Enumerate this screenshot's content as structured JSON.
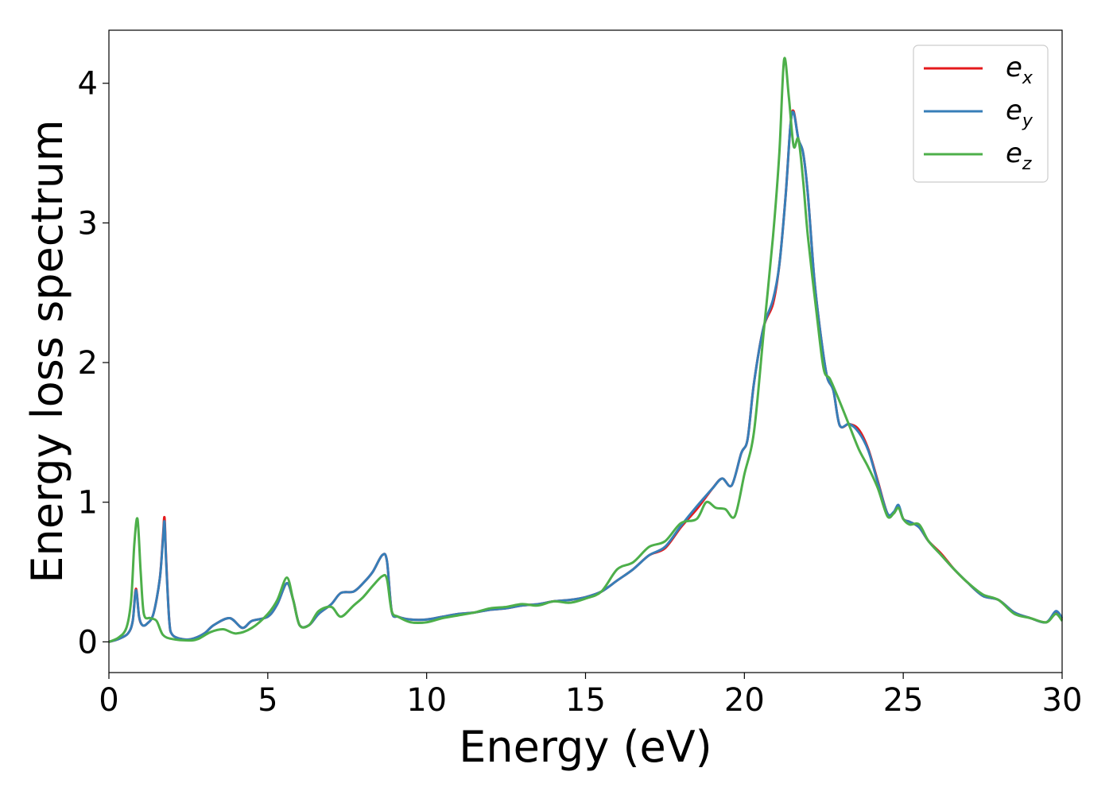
{
  "chart_data": {
    "type": "line",
    "title": "",
    "xlabel": "Energy (eV)",
    "ylabel": "Energy loss spectrum",
    "xlim": [
      0,
      30
    ],
    "ylim": [
      -0.22,
      4.38
    ],
    "xticks": [
      "0",
      "5",
      "10",
      "15",
      "20",
      "25",
      "30"
    ],
    "yticks": [
      "0",
      "1",
      "2",
      "3",
      "4"
    ],
    "grid": false,
    "legend_position": "top-right",
    "series": [
      {
        "name": "e_x",
        "legend_base": "e",
        "legend_sub": "x",
        "color": "#e41a1c",
        "x": [
          0,
          0.3,
          0.6,
          0.75,
          0.85,
          0.95,
          1.05,
          1.2,
          1.4,
          1.6,
          1.7,
          1.75,
          1.8,
          1.9,
          2.0,
          2.3,
          2.6,
          3.0,
          3.3,
          3.8,
          4.2,
          4.5,
          5.0,
          5.3,
          5.6,
          5.8,
          6.0,
          6.3,
          6.6,
          7.0,
          7.3,
          7.7,
          8.0,
          8.3,
          8.6,
          8.75,
          8.9,
          9.1,
          9.5,
          10.0,
          10.5,
          11.0,
          11.5,
          12.0,
          12.5,
          13.0,
          13.5,
          14.0,
          14.5,
          15.0,
          15.5,
          16.0,
          16.5,
          17.0,
          17.5,
          18.0,
          18.5,
          19.0,
          19.3,
          19.6,
          19.9,
          20.1,
          20.3,
          20.6,
          20.9,
          21.1,
          21.3,
          21.45,
          21.55,
          21.7,
          21.85,
          22.0,
          22.2,
          22.4,
          22.6,
          22.8,
          23.0,
          23.3,
          23.6,
          23.9,
          24.2,
          24.5,
          24.7,
          24.85,
          25.0,
          25.2,
          25.5,
          25.8,
          26.2,
          26.6,
          27.0,
          27.5,
          28.0,
          28.5,
          29.0,
          29.5,
          29.8,
          30.0
        ],
        "y": [
          0.0,
          0.02,
          0.06,
          0.15,
          0.38,
          0.18,
          0.12,
          0.13,
          0.2,
          0.45,
          0.75,
          0.89,
          0.6,
          0.15,
          0.05,
          0.02,
          0.02,
          0.06,
          0.12,
          0.17,
          0.1,
          0.15,
          0.18,
          0.27,
          0.42,
          0.3,
          0.12,
          0.12,
          0.2,
          0.27,
          0.35,
          0.36,
          0.42,
          0.5,
          0.62,
          0.58,
          0.22,
          0.18,
          0.16,
          0.16,
          0.18,
          0.2,
          0.21,
          0.23,
          0.24,
          0.26,
          0.27,
          0.29,
          0.3,
          0.32,
          0.36,
          0.44,
          0.52,
          0.62,
          0.67,
          0.82,
          0.95,
          1.1,
          1.17,
          1.12,
          1.35,
          1.45,
          1.85,
          2.25,
          2.42,
          2.7,
          3.2,
          3.7,
          3.8,
          3.6,
          3.5,
          3.2,
          2.6,
          2.2,
          1.9,
          1.8,
          1.55,
          1.56,
          1.52,
          1.38,
          1.15,
          0.92,
          0.92,
          0.97,
          0.88,
          0.86,
          0.82,
          0.72,
          0.63,
          0.52,
          0.43,
          0.33,
          0.3,
          0.21,
          0.17,
          0.14,
          0.21,
          0.16
        ]
      },
      {
        "name": "e_y",
        "legend_base": "e",
        "legend_sub": "y",
        "color": "#377eb8",
        "x": [
          0,
          0.3,
          0.6,
          0.75,
          0.85,
          0.95,
          1.05,
          1.2,
          1.4,
          1.6,
          1.7,
          1.75,
          1.8,
          1.9,
          2.0,
          2.3,
          2.6,
          3.0,
          3.3,
          3.8,
          4.2,
          4.5,
          5.0,
          5.3,
          5.6,
          5.8,
          6.0,
          6.3,
          6.6,
          7.0,
          7.3,
          7.7,
          8.0,
          8.3,
          8.6,
          8.75,
          8.9,
          9.1,
          9.5,
          10.0,
          10.5,
          11.0,
          11.5,
          12.0,
          12.5,
          13.0,
          13.5,
          14.0,
          14.5,
          15.0,
          15.5,
          16.0,
          16.5,
          17.0,
          17.5,
          18.0,
          18.5,
          19.0,
          19.3,
          19.6,
          19.9,
          20.1,
          20.3,
          20.6,
          20.9,
          21.1,
          21.3,
          21.45,
          21.55,
          21.7,
          21.85,
          22.0,
          22.2,
          22.4,
          22.6,
          22.8,
          23.0,
          23.3,
          23.6,
          23.9,
          24.2,
          24.5,
          24.7,
          24.85,
          25.0,
          25.2,
          25.5,
          25.8,
          26.2,
          26.6,
          27.0,
          27.5,
          28.0,
          28.5,
          29.0,
          29.5,
          29.8,
          30.0
        ],
        "y": [
          0.0,
          0.02,
          0.06,
          0.15,
          0.37,
          0.18,
          0.12,
          0.13,
          0.2,
          0.45,
          0.73,
          0.86,
          0.58,
          0.15,
          0.05,
          0.02,
          0.02,
          0.06,
          0.12,
          0.17,
          0.1,
          0.15,
          0.18,
          0.27,
          0.42,
          0.3,
          0.12,
          0.12,
          0.2,
          0.27,
          0.35,
          0.36,
          0.42,
          0.5,
          0.62,
          0.58,
          0.22,
          0.18,
          0.16,
          0.16,
          0.18,
          0.2,
          0.21,
          0.23,
          0.24,
          0.26,
          0.27,
          0.29,
          0.3,
          0.32,
          0.36,
          0.44,
          0.52,
          0.62,
          0.68,
          0.83,
          0.97,
          1.1,
          1.17,
          1.12,
          1.35,
          1.45,
          1.85,
          2.25,
          2.45,
          2.7,
          3.2,
          3.7,
          3.79,
          3.6,
          3.5,
          3.2,
          2.6,
          2.2,
          1.9,
          1.8,
          1.55,
          1.56,
          1.5,
          1.37,
          1.14,
          0.92,
          0.93,
          0.98,
          0.88,
          0.86,
          0.82,
          0.72,
          0.62,
          0.52,
          0.43,
          0.33,
          0.3,
          0.21,
          0.17,
          0.14,
          0.22,
          0.17
        ]
      },
      {
        "name": "e_z",
        "legend_base": "e",
        "legend_sub": "z",
        "color": "#4daf4a",
        "x": [
          0,
          0.3,
          0.55,
          0.7,
          0.8,
          0.9,
          1.0,
          1.1,
          1.3,
          1.5,
          1.7,
          2.0,
          2.5,
          2.8,
          3.2,
          3.6,
          4.0,
          4.5,
          5.0,
          5.3,
          5.6,
          5.8,
          6.0,
          6.3,
          6.6,
          7.0,
          7.3,
          7.7,
          8.0,
          8.3,
          8.6,
          8.75,
          8.9,
          9.1,
          9.5,
          10.0,
          10.5,
          11.0,
          11.5,
          12.0,
          12.5,
          13.0,
          13.5,
          14.0,
          14.5,
          15.0,
          15.5,
          16.0,
          16.5,
          17.0,
          17.5,
          18.0,
          18.5,
          18.8,
          19.1,
          19.4,
          19.7,
          20.0,
          20.3,
          20.6,
          20.9,
          21.1,
          21.25,
          21.4,
          21.55,
          21.7,
          21.85,
          22.0,
          22.3,
          22.5,
          22.7,
          23.0,
          23.3,
          23.6,
          23.9,
          24.2,
          24.5,
          24.7,
          24.85,
          25.0,
          25.2,
          25.5,
          25.8,
          26.2,
          26.6,
          27.0,
          27.5,
          28.0,
          28.5,
          29.0,
          29.5,
          29.8,
          30.0
        ],
        "y": [
          0.0,
          0.03,
          0.1,
          0.3,
          0.7,
          0.88,
          0.5,
          0.2,
          0.17,
          0.15,
          0.05,
          0.02,
          0.01,
          0.02,
          0.07,
          0.09,
          0.06,
          0.1,
          0.2,
          0.3,
          0.46,
          0.3,
          0.12,
          0.12,
          0.22,
          0.25,
          0.18,
          0.26,
          0.32,
          0.4,
          0.47,
          0.45,
          0.22,
          0.18,
          0.14,
          0.14,
          0.17,
          0.19,
          0.21,
          0.24,
          0.25,
          0.27,
          0.26,
          0.29,
          0.28,
          0.31,
          0.36,
          0.52,
          0.57,
          0.68,
          0.72,
          0.85,
          0.88,
          1.0,
          0.96,
          0.95,
          0.9,
          1.2,
          1.5,
          2.2,
          2.9,
          3.5,
          4.17,
          3.9,
          3.55,
          3.6,
          3.3,
          2.9,
          2.3,
          1.95,
          1.88,
          1.72,
          1.55,
          1.38,
          1.25,
          1.1,
          0.9,
          0.92,
          0.96,
          0.88,
          0.84,
          0.84,
          0.72,
          0.62,
          0.52,
          0.43,
          0.34,
          0.3,
          0.2,
          0.17,
          0.14,
          0.2,
          0.15
        ]
      }
    ]
  }
}
